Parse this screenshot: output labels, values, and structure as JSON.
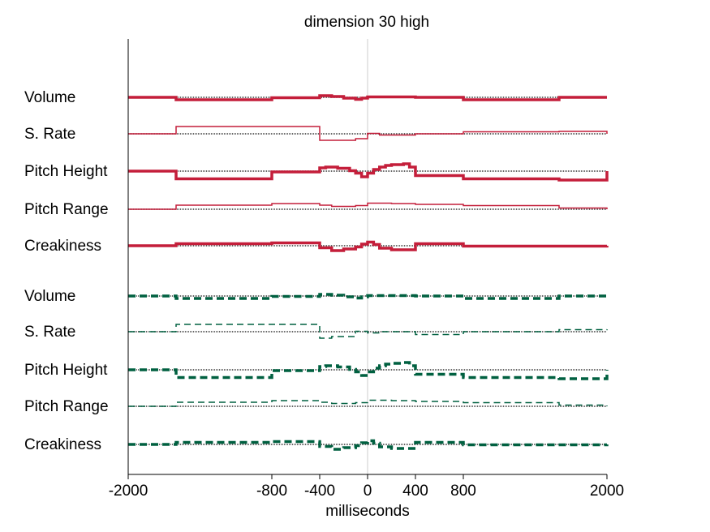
{
  "chart_data": {
    "type": "line",
    "title": "dimension 30 high",
    "xlabel": "milliseconds",
    "ylabel": "",
    "xlim": [
      -2000,
      2000
    ],
    "xticks": [
      -2000,
      -800,
      -400,
      0,
      400,
      800,
      2000
    ],
    "xtick_labels": [
      "-2000",
      "-800",
      "-400",
      "0",
      "400",
      "800",
      "2000"
    ],
    "zero_line": 0,
    "colors": {
      "red": "#c41e3a",
      "green": "#006040",
      "baseline": "#333333",
      "zero": "#cccccc"
    },
    "groups": [
      {
        "color": "#c41e3a",
        "dash": "solid",
        "series": [
          {
            "name": "Volume",
            "thick": true,
            "baseline": 0,
            "x": [
              -2000,
              -1600,
              -800,
              -400,
              -300,
              -200,
              -100,
              -50,
              0,
              400,
              800,
              1600,
              2000
            ],
            "y": [
              0,
              -6,
              -1,
              4,
              2,
              -2,
              -5,
              -2,
              1,
              0,
              -6,
              0,
              0
            ]
          },
          {
            "name": "S. Rate",
            "thick": false,
            "baseline": 0,
            "x": [
              -2000,
              -1600,
              -400,
              -100,
              0,
              100,
              400,
              800,
              1600,
              2000
            ],
            "y": [
              0,
              18,
              -16,
              -12,
              1,
              -3,
              0,
              5,
              6,
              0
            ]
          },
          {
            "name": "Pitch Height",
            "thick": true,
            "baseline": 0,
            "x": [
              -2000,
              -1600,
              -800,
              -400,
              -350,
              -250,
              -150,
              -100,
              -50,
              0,
              50,
              100,
              150,
              200,
              300,
              350,
              400,
              800,
              1600,
              2000
            ],
            "y": [
              0,
              -19,
              -2,
              8,
              10,
              7,
              1,
              -5,
              -14,
              -5,
              4,
              10,
              14,
              16,
              18,
              10,
              -11,
              -19,
              -22,
              0
            ]
          },
          {
            "name": "Pitch Range",
            "thick": false,
            "baseline": 0,
            "x": [
              -2000,
              -1600,
              -800,
              -400,
              -300,
              -100,
              0,
              200,
              400,
              800,
              1600,
              2000
            ],
            "y": [
              0,
              10,
              14,
              10,
              7,
              9,
              15,
              14,
              12,
              9,
              3,
              0
            ]
          },
          {
            "name": "Creakiness",
            "thick": true,
            "baseline": 0,
            "x": [
              -2000,
              -1600,
              -800,
              -400,
              -300,
              -200,
              -100,
              -50,
              0,
              50,
              100,
              200,
              400,
              800,
              1600,
              2000
            ],
            "y": [
              0,
              5,
              7,
              -5,
              -12,
              -8,
              -3,
              4,
              9,
              3,
              -6,
              -10,
              5,
              -1,
              -1,
              0
            ]
          }
        ]
      },
      {
        "color": "#006040",
        "dash": "dashed",
        "series": [
          {
            "name": "Volume",
            "thick": true,
            "baseline": 0,
            "x": [
              -2000,
              -1600,
              -800,
              -400,
              -300,
              -200,
              -100,
              -50,
              0,
              400,
              800,
              1600,
              2000
            ],
            "y": [
              0,
              -6,
              -1,
              4,
              2,
              -2,
              -5,
              -2,
              1,
              0,
              -6,
              0,
              0
            ]
          },
          {
            "name": "S. Rate",
            "thick": false,
            "baseline": 0,
            "x": [
              -2000,
              -1600,
              -400,
              -300,
              -100,
              0,
              100,
              400,
              800,
              1600,
              2000
            ],
            "y": [
              0,
              18,
              -16,
              -12,
              1,
              -3,
              0,
              -7,
              0,
              5,
              6
            ]
          },
          {
            "name": "Pitch Height",
            "thick": true,
            "baseline": 0,
            "x": [
              -2000,
              -1600,
              -800,
              -400,
              -350,
              -250,
              -150,
              -100,
              -50,
              0,
              50,
              100,
              150,
              200,
              300,
              350,
              400,
              800,
              1600,
              2000
            ],
            "y": [
              0,
              -19,
              -2,
              8,
              10,
              7,
              1,
              -5,
              -14,
              -5,
              4,
              10,
              14,
              16,
              18,
              10,
              -11,
              -19,
              -22,
              0
            ]
          },
          {
            "name": "Pitch Range",
            "thick": false,
            "baseline": 0,
            "x": [
              -2000,
              -1600,
              -800,
              -400,
              -300,
              -100,
              0,
              200,
              400,
              800,
              1600,
              2000
            ],
            "y": [
              0,
              10,
              14,
              10,
              7,
              9,
              15,
              14,
              12,
              9,
              3,
              0
            ]
          },
          {
            "name": "Creakiness",
            "thick": true,
            "baseline": 0,
            "x": [
              -2000,
              -1600,
              -800,
              -400,
              -300,
              -200,
              -100,
              -50,
              0,
              50,
              100,
              200,
              400,
              800,
              1600,
              2000
            ],
            "y": [
              0,
              5,
              7,
              -5,
              -12,
              -8,
              -3,
              4,
              9,
              3,
              -6,
              -10,
              5,
              -1,
              -1,
              0
            ]
          }
        ]
      }
    ],
    "grid": false,
    "legend": "left"
  }
}
